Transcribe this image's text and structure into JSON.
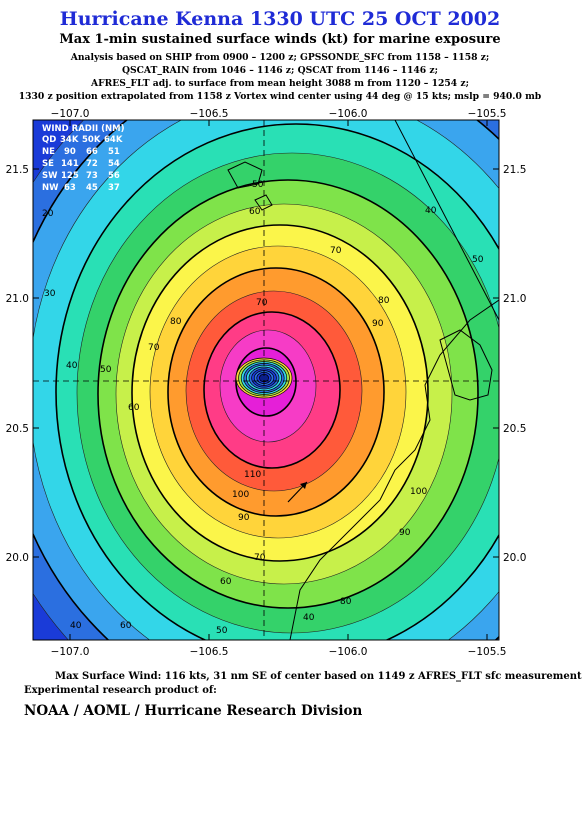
{
  "header": {
    "title": "Hurricane Kenna 1330 UTC 25 OCT 2002",
    "subtitle": "Max 1-min sustained surface winds (kt) for marine exposure",
    "notes": [
      "Analysis based on  SHIP from 0900 – 1200 z;  GPSSONDE_SFC from 1158 – 1158 z;",
      "QSCAT_RAIN from 1046 – 1146 z;  QSCAT from 1146 – 1146 z;",
      "AFRES_FLT adj. to surface from mean height 3088 m from 1120 – 1254 z;",
      "1330 z position extrapolated from 1158 z Vortex wind center using 44 deg @ 15 kts; mslp = 940.0 mb"
    ]
  },
  "map": {
    "lon_ticks": [
      "−107.0",
      "−106.5",
      "−106.0",
      "−105.5"
    ],
    "lat_ticks": [
      "21.5",
      "21.0",
      "20.5",
      "20.0"
    ],
    "contour_labels": [
      "20",
      "30",
      "40",
      "50",
      "60",
      "70",
      "80",
      "90",
      "100",
      "110",
      "40",
      "50",
      "70",
      "80",
      "90",
      "60",
      "70",
      "50",
      "40",
      "60",
      "50",
      "40",
      "60",
      "70",
      "80",
      "90",
      "100"
    ],
    "wind_radii": {
      "title": "WIND RADII (NM)",
      "header": [
        "QD",
        "34K",
        "50K",
        "64K"
      ],
      "rows": [
        [
          "NE",
          "90",
          "66",
          "51"
        ],
        [
          "SE",
          "141",
          "72",
          "54"
        ],
        [
          "SW",
          "125",
          "73",
          "56"
        ],
        [
          "NW",
          "63",
          "45",
          "37"
        ]
      ]
    },
    "colors": {
      "ocean_low": "#1a3bd8",
      "ring_colors": [
        "#2b6fe0",
        "#3aa5ee",
        "#33d6e8",
        "#29e0b5",
        "#34d26a",
        "#7fe34a",
        "#c7f04a",
        "#fbf54a",
        "#ffd43a",
        "#ff9b2e",
        "#ff5a3a",
        "#ff3c86",
        "#f63cc6",
        "#e51fd8"
      ]
    }
  },
  "footer": {
    "max_wind": "Max Surface Wind: 116 kts, 31 nm SE of center based on 1149 z AFRES_FLT sfc measurement",
    "experimental": "Experimental research product of:",
    "org": "NOAA / AOML / Hurricane Research Division"
  }
}
